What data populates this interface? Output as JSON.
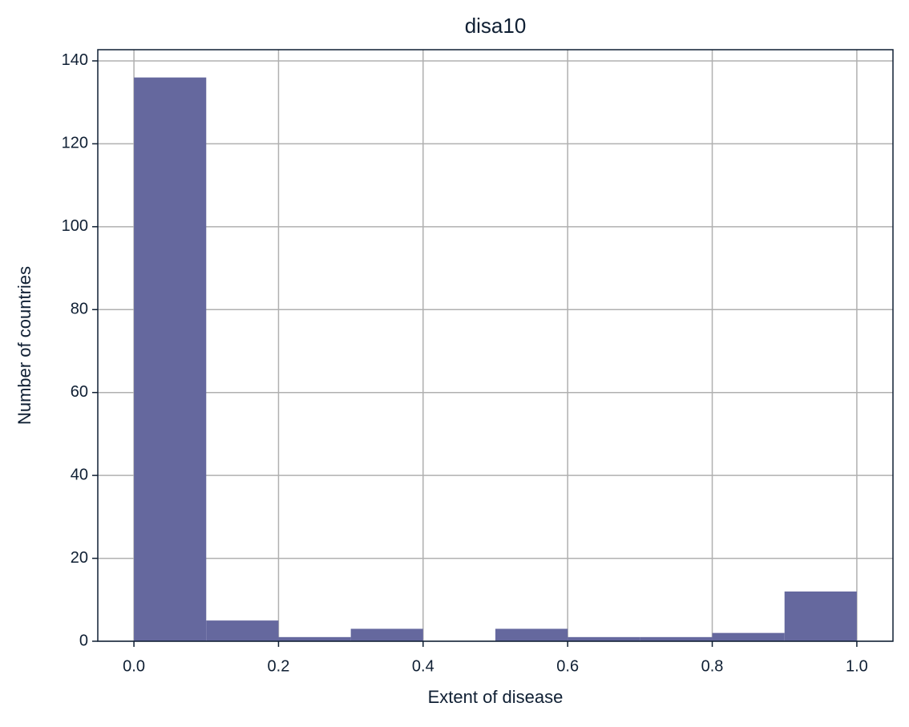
{
  "chart_data": {
    "type": "histogram",
    "title": "disa10",
    "xlabel": "Extent of disease",
    "ylabel": "Number of countries",
    "bins": [
      0.0,
      0.1,
      0.2,
      0.3,
      0.4,
      0.5,
      0.6,
      0.7,
      0.8,
      0.9,
      1.0
    ],
    "counts": [
      136,
      5,
      1,
      3,
      0,
      3,
      1,
      1,
      2,
      12
    ],
    "color": "#65689e",
    "xlim": [
      -0.05,
      1.05
    ],
    "xticks": [
      {
        "value": 0,
        "label": "0.0"
      },
      {
        "value": 0.2,
        "label": "0.2"
      },
      {
        "value": 0.4,
        "label": "0.4"
      },
      {
        "value": 0.6,
        "label": "0.6"
      },
      {
        "value": 0.8,
        "label": "0.8"
      },
      {
        "value": 1,
        "label": "1.0"
      }
    ],
    "ylim": [
      0,
      142.7
    ],
    "yticks": [
      0,
      20,
      40,
      60,
      80,
      100,
      120,
      140
    ],
    "grid": true
  }
}
